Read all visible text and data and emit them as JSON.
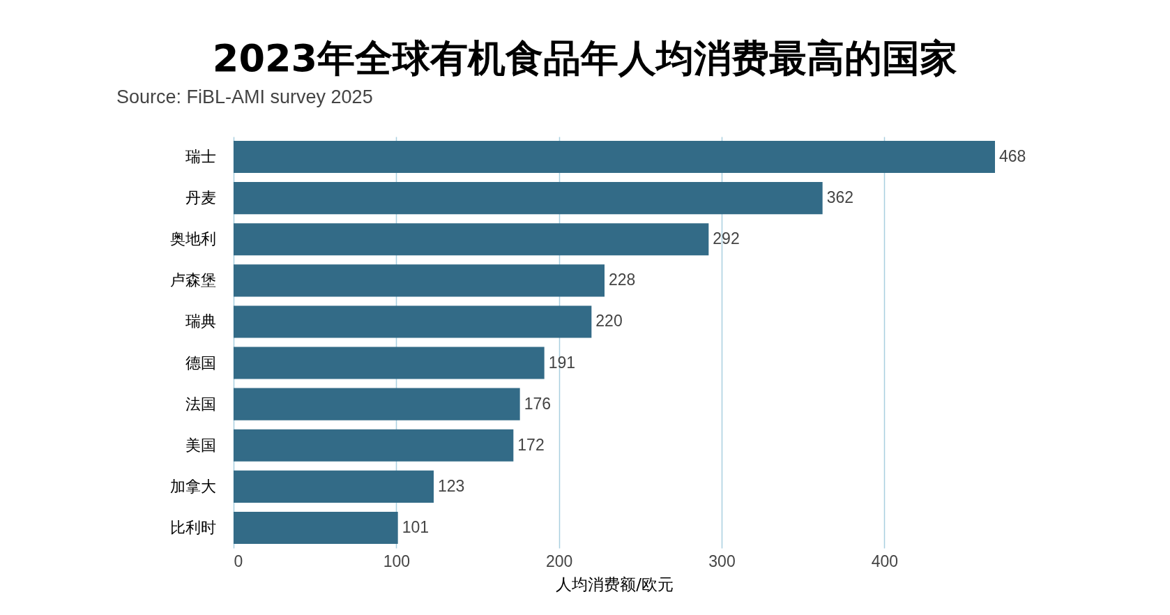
{
  "chart_data": {
    "type": "bar",
    "orientation": "horizontal",
    "title": "2023年全球有机食品年人均消费最高的国家",
    "annotations": [
      "Source: FiBL-AMI survey 2025"
    ],
    "xlabel": "人均消费额/欧元",
    "categories": [
      "瑞士",
      "丹麦",
      "奥地利",
      "卢森堡",
      "瑞典",
      "德国",
      "法国",
      "美国",
      "加拿大",
      "比利时"
    ],
    "values": [
      468,
      362,
      292,
      228,
      220,
      191,
      176,
      172,
      123,
      101
    ],
    "color": "#336b87",
    "xlim": [
      0,
      468
    ],
    "xticks": [
      0,
      100,
      200,
      300,
      400
    ],
    "grid": "x",
    "data_labels": true
  }
}
